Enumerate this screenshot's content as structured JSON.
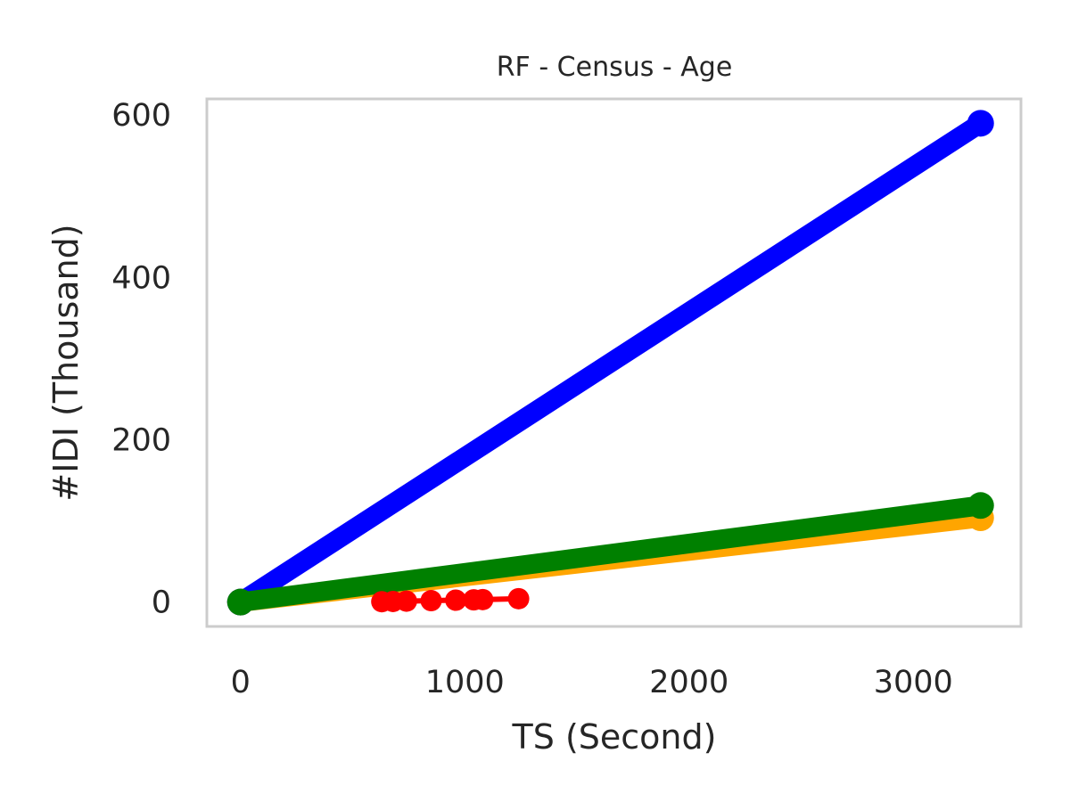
{
  "chart_data": {
    "type": "line",
    "title": "RF - Census - Age",
    "xlabel": "TS (Second)",
    "ylabel": "#IDI (Thousand)",
    "xlim": [
      -150,
      3480
    ],
    "ylim": [
      -30,
      620
    ],
    "xticks": [
      0,
      1000,
      2000,
      3000
    ],
    "yticks": [
      0,
      200,
      400,
      600
    ],
    "grid": false,
    "series": [
      {
        "color": "#ffa500",
        "marker": "circle",
        "x": [
          0,
          3300
        ],
        "y": [
          0,
          104
        ]
      },
      {
        "color": "#0000ff",
        "marker": "circle",
        "x": [
          0,
          3300
        ],
        "y": [
          0,
          590
        ]
      },
      {
        "color": "#008000",
        "marker": "circle",
        "x": [
          0,
          3300
        ],
        "y": [
          0,
          119
        ]
      },
      {
        "color": "#ff0000",
        "marker": "circle",
        "x": [
          630,
          680,
          740,
          850,
          960,
          1040,
          1080,
          1240
        ],
        "y": [
          0.5,
          0.8,
          1.2,
          1.8,
          2.4,
          2.8,
          3.1,
          4.2
        ]
      }
    ]
  }
}
